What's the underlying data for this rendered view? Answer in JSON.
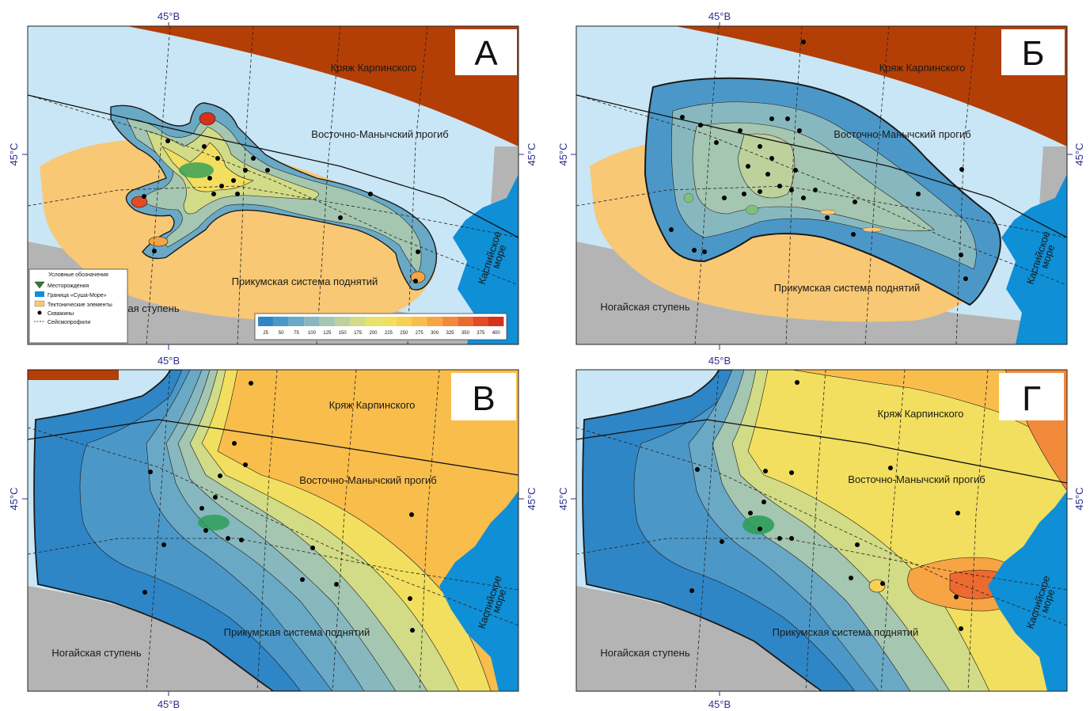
{
  "coordinate_labels": {
    "lon": "45°В",
    "lat": "45°С"
  },
  "regions": {
    "karpinsky": "Кряж Карпинского",
    "manych": "Восточно-Манычский прогиб",
    "prikumsk": "Прикумская система поднятий",
    "nogai": "Ногайская ступень",
    "caspian_line1": "Каспийское",
    "caspian_line2": "море"
  },
  "panels": [
    {
      "letter": "А"
    },
    {
      "letter": "Б"
    },
    {
      "letter": "В"
    },
    {
      "letter": "Г"
    }
  ],
  "legend": {
    "title": "Условные обозначения",
    "items": [
      {
        "label": "Месторождения",
        "icon": "deposit-icon",
        "color": "#2e7d32"
      },
      {
        "label": "Граница «Суша-Море»",
        "icon": "shoreline-swatch",
        "color": "#0f8fd6"
      },
      {
        "label": "Тектонические элементы",
        "icon": "tectonic-swatch",
        "color": "#f8c874"
      },
      {
        "label": "Скважины",
        "icon": "well-dot-icon",
        "color": "#000000"
      },
      {
        "label": "Сейсмопрофили",
        "icon": "seismic-line-icon",
        "color": "#000000"
      }
    ]
  },
  "color_scale": {
    "ticks": [
      "25",
      "50",
      "75",
      "100",
      "125",
      "150",
      "175",
      "200",
      "225",
      "250",
      "275",
      "300",
      "325",
      "350",
      "375",
      "400"
    ],
    "colors": [
      "#2f86c6",
      "#4b98c8",
      "#6aa9c6",
      "#88b8bf",
      "#a5c6b0",
      "#bdd19c",
      "#d2db86",
      "#e5e26f",
      "#f2df5f",
      "#f8d054",
      "#f9bd4c",
      "#f7a444",
      "#f3893b",
      "#ec6a30",
      "#e24b24",
      "#d63219"
    ]
  },
  "colors": {
    "sea": "#0f8fd6",
    "basin_light": "#c9e6f6",
    "karpinsky_ridge": "#b33f06",
    "tectonic_elements": "#f8c874",
    "nogai_step": "#b4b4b4",
    "deposits": "#2e9d5a"
  }
}
